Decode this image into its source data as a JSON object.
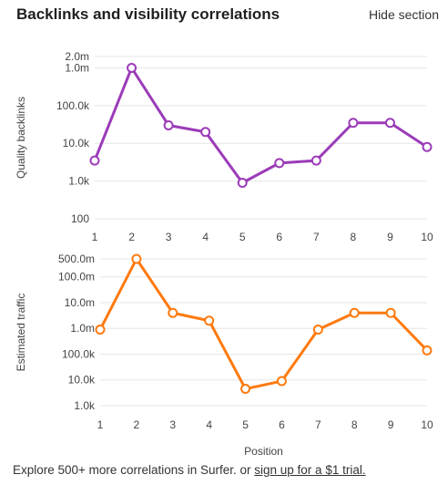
{
  "header": {
    "title": "Backlinks and visibility correlations",
    "hide_label": "Hide section"
  },
  "footer": {
    "text": "Explore 500+ more correlations in Surfer. or ",
    "link_text": "sign up for a $1 trial."
  },
  "chart_data": [
    {
      "type": "line",
      "categories": [
        "1",
        "2",
        "3",
        "4",
        "5",
        "6",
        "7",
        "8",
        "9",
        "10"
      ],
      "series": [
        {
          "values": [
            3500,
            1000000,
            30000,
            20000,
            900,
            3000,
            3500,
            35000,
            35000,
            8000
          ]
        }
      ],
      "ylabel": "Quality backlinks",
      "xlabel": "",
      "yscale": "log",
      "ylim": [
        100,
        2000000
      ],
      "yticks": [
        100,
        1000,
        10000,
        100000,
        1000000,
        2000000
      ],
      "yticklabels": [
        "100",
        "1.0k",
        "10.0k",
        "100.0k",
        "1.0m",
        "2.0m"
      ],
      "color": "#9b3bb8",
      "grid": true
    },
    {
      "type": "line",
      "categories": [
        "1",
        "2",
        "3",
        "4",
        "5",
        "6",
        "7",
        "8",
        "9",
        "10"
      ],
      "series": [
        {
          "values": [
            900000,
            500000000,
            4000000,
            2000000,
            4500,
            9000,
            900000,
            4000000,
            4000000,
            140000
          ]
        }
      ],
      "ylabel": "Estimated traffic",
      "xlabel": "Position",
      "yscale": "log",
      "ylim": [
        1000,
        500000000
      ],
      "yticks": [
        1000,
        10000,
        100000,
        1000000,
        10000000,
        100000000,
        500000000
      ],
      "yticklabels": [
        "1.0k",
        "10.0k",
        "100.0k",
        "1.0m",
        "10.0m",
        "100.0m",
        "500.0m"
      ],
      "color": "#ff7a0f",
      "grid": true
    }
  ]
}
